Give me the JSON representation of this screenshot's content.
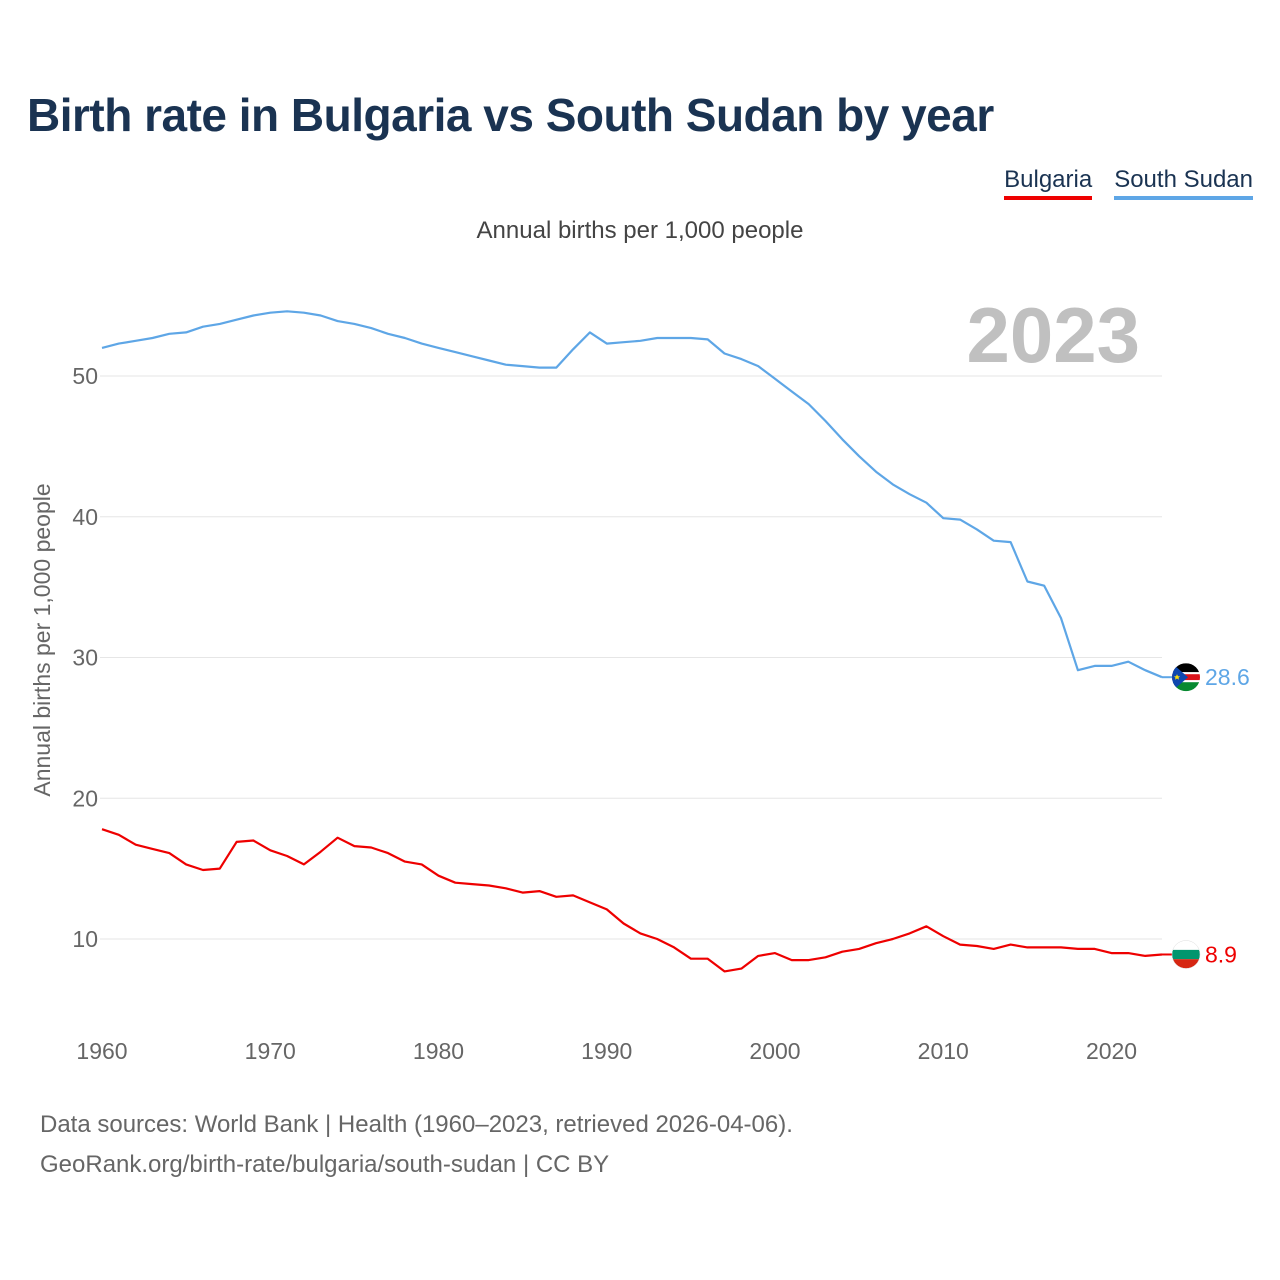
{
  "title": "Birth rate in Bulgaria vs South Sudan by year",
  "legend": [
    {
      "name": "Bulgaria",
      "color": "#ee0000"
    },
    {
      "name": "South Sudan",
      "color": "#5ea6e6"
    }
  ],
  "subtitle": "Annual births per 1,000 people",
  "current_year": "2023",
  "source": {
    "line1": "Data sources: World Bank | Health (1960–2023, retrieved 2026-04-06).",
    "line2": "GeoRank.org/birth-rate/bulgaria/south-sudan | CC BY"
  },
  "chart_data": {
    "type": "line",
    "title": "Birth rate in Bulgaria vs South Sudan by year",
    "xlabel": "",
    "ylabel": "Annual births per 1,000 people",
    "xlim": [
      1960,
      2023
    ],
    "ylim": [
      5,
      57
    ],
    "grid": true,
    "x_ticks": [
      1960,
      1970,
      1980,
      1990,
      2000,
      2010,
      2020
    ],
    "y_ticks": [
      10,
      20,
      30,
      40,
      50
    ],
    "x": [
      1960,
      1961,
      1962,
      1963,
      1964,
      1965,
      1966,
      1967,
      1968,
      1969,
      1970,
      1971,
      1972,
      1973,
      1974,
      1975,
      1976,
      1977,
      1978,
      1979,
      1980,
      1981,
      1982,
      1983,
      1984,
      1985,
      1986,
      1987,
      1988,
      1989,
      1990,
      1991,
      1992,
      1993,
      1994,
      1995,
      1996,
      1997,
      1998,
      1999,
      2000,
      2001,
      2002,
      2003,
      2004,
      2005,
      2006,
      2007,
      2008,
      2009,
      2010,
      2011,
      2012,
      2013,
      2014,
      2015,
      2016,
      2017,
      2018,
      2019,
      2020,
      2021,
      2022,
      2023
    ],
    "series": [
      {
        "name": "Bulgaria",
        "color": "#ee0000",
        "end_label": "8.9",
        "values": [
          17.8,
          17.4,
          16.7,
          16.4,
          16.1,
          15.3,
          14.9,
          15.0,
          16.9,
          17.0,
          16.3,
          15.9,
          15.3,
          16.2,
          17.2,
          16.6,
          16.5,
          16.1,
          15.5,
          15.3,
          14.5,
          14.0,
          13.9,
          13.8,
          13.6,
          13.3,
          13.4,
          13.0,
          13.1,
          12.6,
          12.1,
          11.1,
          10.4,
          10.0,
          9.4,
          8.6,
          8.6,
          7.7,
          7.9,
          8.8,
          9.0,
          8.5,
          8.5,
          8.7,
          9.1,
          9.3,
          9.7,
          10.0,
          10.4,
          10.9,
          10.2,
          9.6,
          9.5,
          9.3,
          9.6,
          9.4,
          9.4,
          9.4,
          9.3,
          9.3,
          9.0,
          9.0,
          8.8,
          8.9
        ]
      },
      {
        "name": "South Sudan",
        "color": "#5ea6e6",
        "end_label": "28.6",
        "values": [
          52.0,
          52.3,
          52.5,
          52.7,
          53.0,
          53.1,
          53.5,
          53.7,
          54.0,
          54.3,
          54.5,
          54.6,
          54.5,
          54.3,
          53.9,
          53.7,
          53.4,
          53.0,
          52.7,
          52.3,
          52.0,
          51.7,
          51.4,
          51.1,
          50.8,
          50.7,
          50.6,
          50.6,
          51.9,
          53.1,
          52.3,
          52.4,
          52.5,
          52.7,
          52.7,
          52.7,
          52.6,
          51.6,
          51.2,
          50.7,
          49.8,
          48.9,
          48.0,
          46.8,
          45.5,
          44.3,
          43.2,
          42.3,
          41.6,
          41.0,
          39.9,
          39.8,
          39.1,
          38.3,
          38.2,
          35.4,
          35.1,
          32.8,
          29.1,
          29.4,
          29.4,
          29.7,
          29.1,
          28.6
        ]
      }
    ]
  }
}
